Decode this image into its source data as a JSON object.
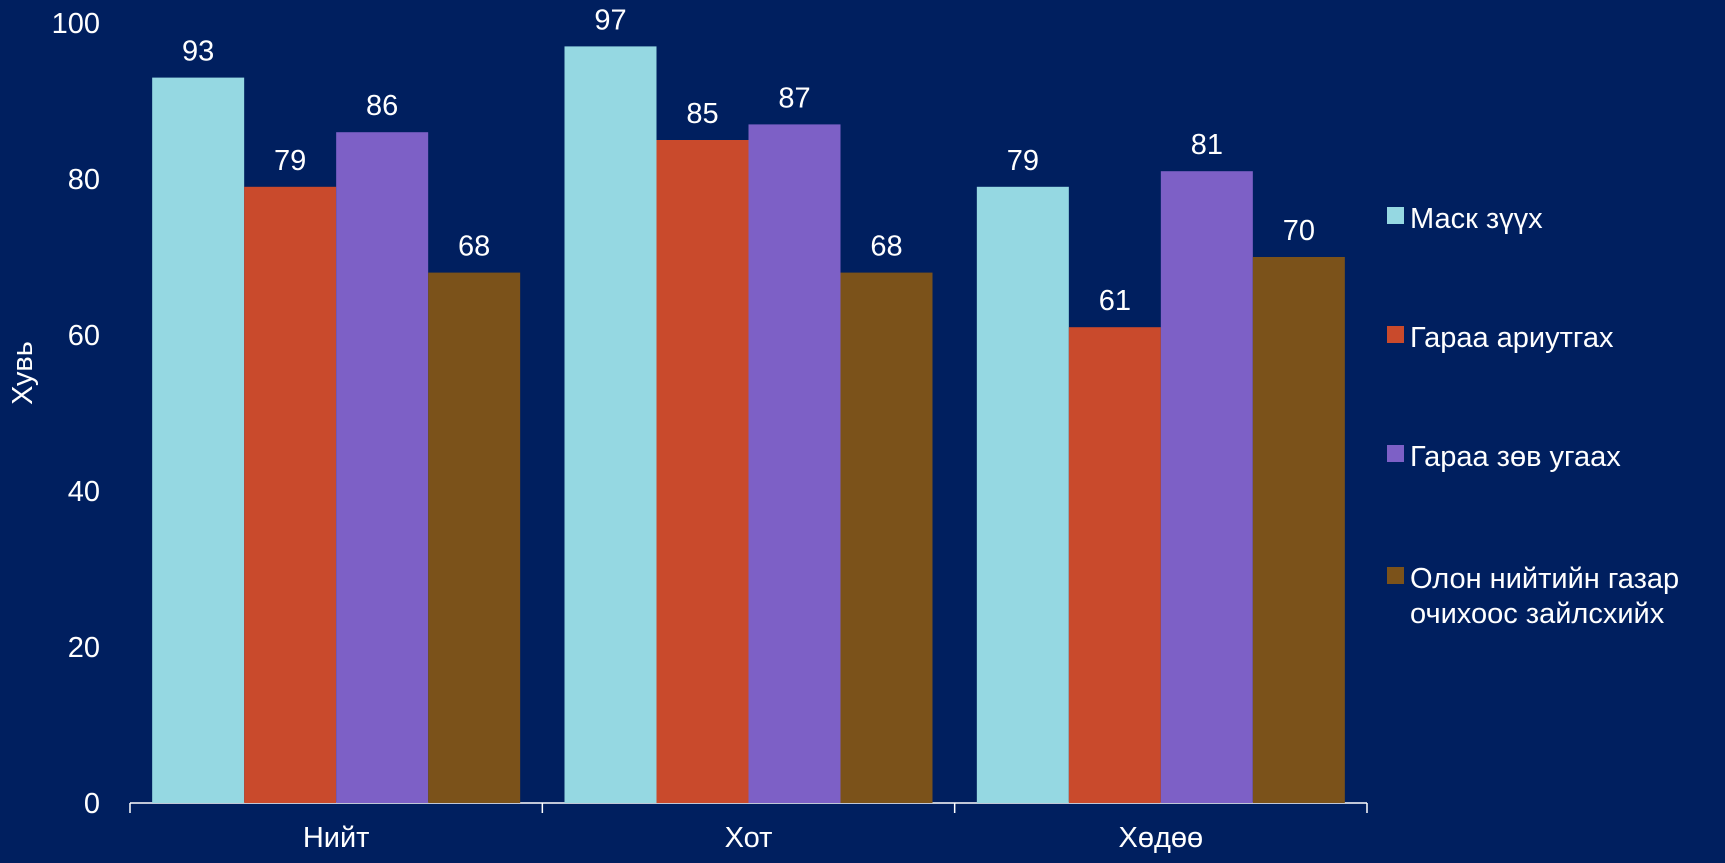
{
  "chart_data": {
    "type": "bar",
    "title": "",
    "xlabel": "",
    "ylabel": "Хувь",
    "ylim": [
      0,
      100
    ],
    "yticks": [
      0,
      20,
      40,
      60,
      80,
      100
    ],
    "grid": false,
    "legend_position": "right",
    "categories": [
      "Нийт",
      "Хот",
      "Хөдөө"
    ],
    "series": [
      {
        "name": "Маск зүүх",
        "color": "#95D8E2",
        "values": [
          93,
          97,
          79
        ]
      },
      {
        "name": "Гараа ариутгах",
        "color": "#C94A2C",
        "values": [
          79,
          85,
          61
        ]
      },
      {
        "name": "Гараа зөв угаах",
        "color": "#7D60C6",
        "values": [
          86,
          87,
          81
        ]
      },
      {
        "name": "Олон нийтийн газар очихоос зайлсхийх",
        "color": "#7B521A",
        "values": [
          68,
          68,
          70
        ]
      }
    ]
  },
  "legend_lines": [
    [
      "Маск зүүх"
    ],
    [
      "Гараа ариутгах"
    ],
    [
      "Гараа зөв угаах"
    ],
    [
      "Олон нийтийн газар",
      "очихоос зайлсхийх"
    ]
  ]
}
